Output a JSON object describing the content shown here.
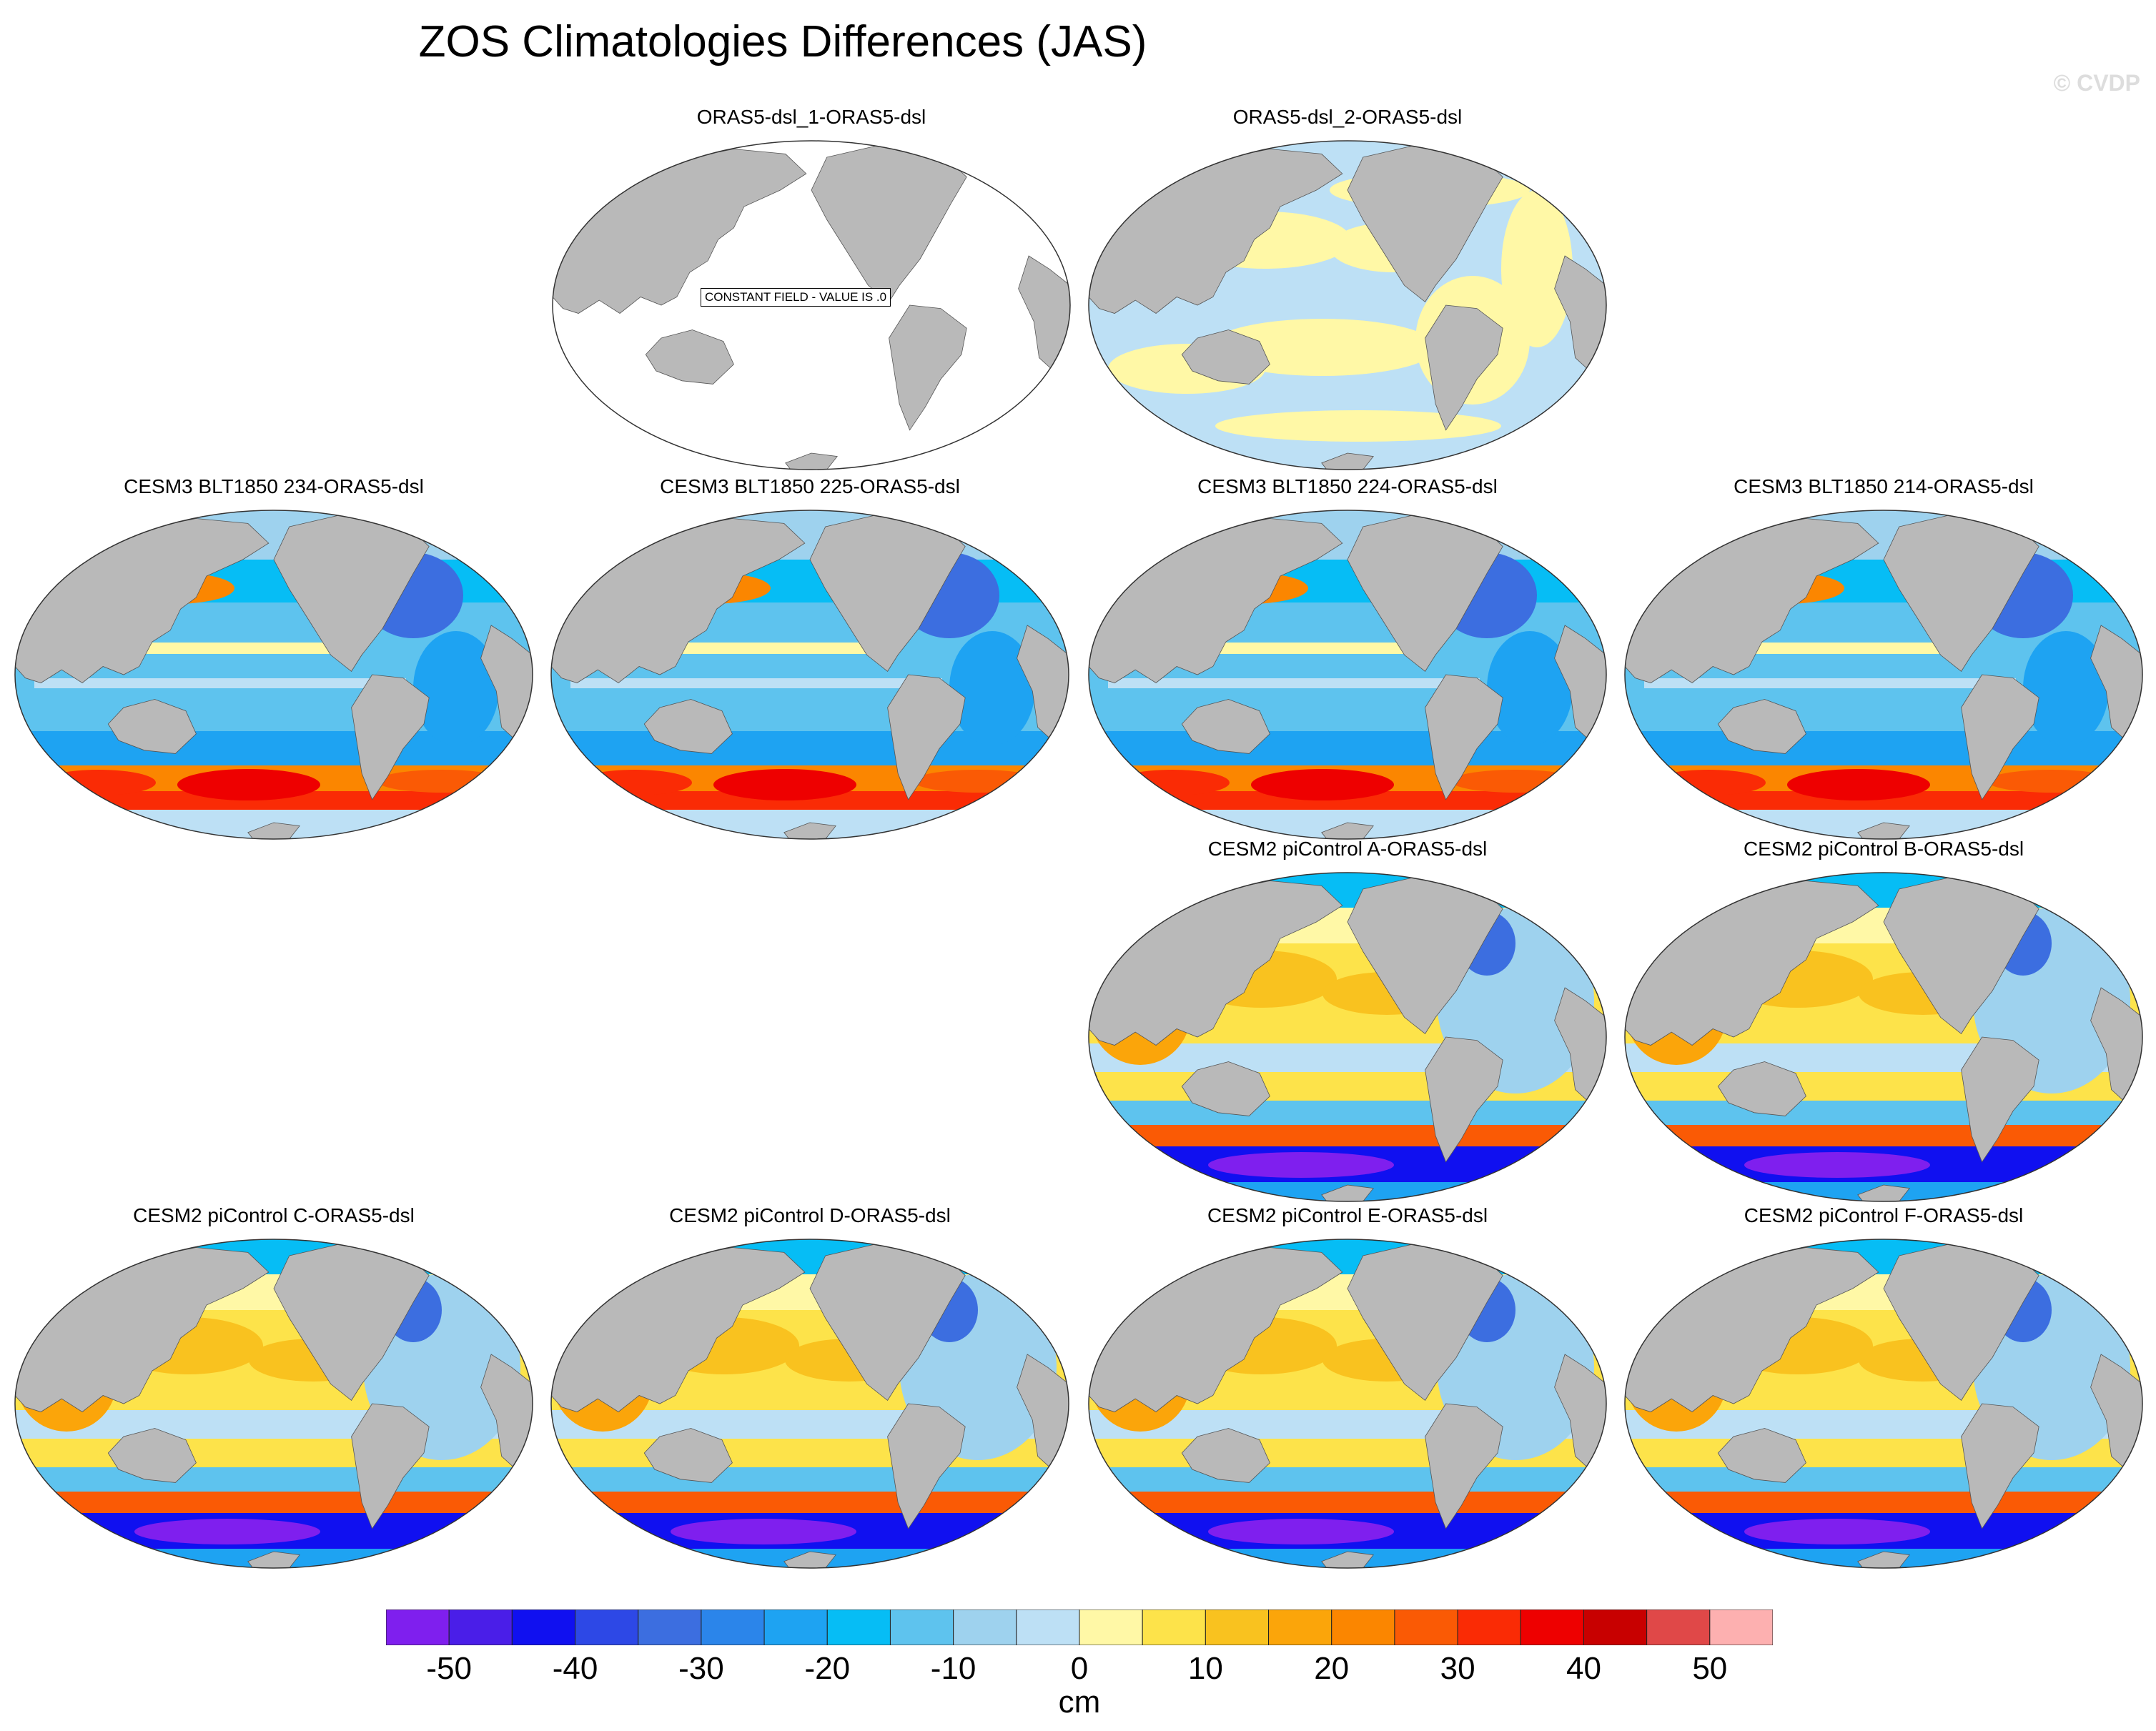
{
  "figure": {
    "title": "ZOS Climatologies Differences (JAS)",
    "copyright": "© CVDP"
  },
  "panels": [
    {
      "title": "ORAS5-dsl_1-ORAS5-dsl",
      "pattern": "constant",
      "note": "CONSTANT FIELD - VALUE IS .0"
    },
    {
      "title": "ORAS5-dsl_2-ORAS5-dsl",
      "pattern": "near-zero"
    },
    {
      "title": "CESM3 BLT1850 234-ORAS5-dsl",
      "pattern": "cesm3"
    },
    {
      "title": "CESM3 BLT1850 225-ORAS5-dsl",
      "pattern": "cesm3"
    },
    {
      "title": "CESM3 BLT1850 224-ORAS5-dsl",
      "pattern": "cesm3"
    },
    {
      "title": "CESM3 BLT1850 214-ORAS5-dsl",
      "pattern": "cesm3"
    },
    {
      "title": "CESM2 piControl A-ORAS5-dsl",
      "pattern": "cesm2"
    },
    {
      "title": "CESM2 piControl B-ORAS5-dsl",
      "pattern": "cesm2"
    },
    {
      "title": "CESM2 piControl C-ORAS5-dsl",
      "pattern": "cesm2"
    },
    {
      "title": "CESM2 piControl D-ORAS5-dsl",
      "pattern": "cesm2"
    },
    {
      "title": "CESM2 piControl E-ORAS5-dsl",
      "pattern": "cesm2"
    },
    {
      "title": "CESM2 piControl F-ORAS5-dsl",
      "pattern": "cesm2"
    }
  ],
  "colorbar": {
    "unit": "cm",
    "levels": [
      -50,
      -45,
      -40,
      -35,
      -30,
      -25,
      -20,
      -15,
      -10,
      -5,
      0,
      5,
      10,
      15,
      20,
      25,
      30,
      35,
      40,
      45,
      50
    ],
    "tick_labels": [
      "-50",
      "-40",
      "-30",
      "-20",
      "-10",
      "0",
      "10",
      "20",
      "30",
      "40",
      "50"
    ],
    "colors": [
      "#7f1fee",
      "#4a1ee8",
      "#1010f0",
      "#2d48e6",
      "#3c6ee0",
      "#2b85ea",
      "#1ea3f2",
      "#06bdf5",
      "#5ec3ee",
      "#9ed2ee",
      "#bde0f5",
      "#fff8a6",
      "#fde34a",
      "#f9c21f",
      "#fba50a",
      "#fb8600",
      "#fa5a05",
      "#fa2b05",
      "#ee0000",
      "#c80000",
      "#e04848",
      "#fdb0b0"
    ]
  },
  "map_colors": {
    "land": "#b9b9b9",
    "ocean_zero": "#ffffff"
  }
}
